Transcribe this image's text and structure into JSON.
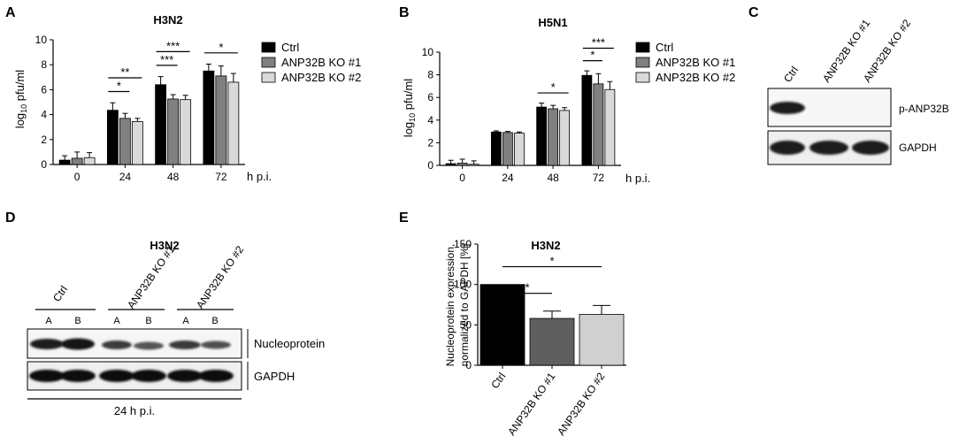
{
  "panels": {
    "A": "A",
    "B": "B",
    "C": "C",
    "D": "D",
    "E": "E"
  },
  "colors": {
    "ctrl": "#000000",
    "ko1": "#808080",
    "ko2": "#d9d9d9",
    "bar_e_ko1": "#5f5f5f",
    "bar_e_ko2": "#d0d0d0"
  },
  "blot_c": {
    "lanes": [
      "Ctrl",
      "ANP32B KO #1",
      "ANP32B KO #2"
    ],
    "rows": [
      "p-ANP32B",
      "GAPDH"
    ]
  },
  "blot_d": {
    "title": "H3N2",
    "groups": [
      "Ctrl",
      "ANP32B KO #1",
      "ANP32B KO #2"
    ],
    "sublanes": [
      "A",
      "B",
      "A",
      "B",
      "A",
      "B"
    ],
    "rows": [
      "Nucleoprotein",
      "GAPDH"
    ],
    "footer": "24 h p.i."
  },
  "chart_data": [
    {
      "panel": "A",
      "type": "bar",
      "title": "H3N2",
      "ylabel_main": "log",
      "ylabel_sub": "10",
      "ylabel_rest": " pfu/ml",
      "xlabel": "h p.i.",
      "categories": [
        "0",
        "24",
        "48",
        "72"
      ],
      "ylim": [
        0,
        10
      ],
      "yticks": [
        0,
        2,
        4,
        6,
        8,
        10
      ],
      "legend": "right",
      "series": [
        {
          "name": "Ctrl",
          "values": [
            0.35,
            4.35,
            6.4,
            7.5
          ],
          "errors": [
            0.35,
            0.6,
            0.65,
            0.55
          ]
        },
        {
          "name": "ANP32B KO #1",
          "values": [
            0.5,
            3.7,
            5.25,
            7.1
          ],
          "errors": [
            0.5,
            0.4,
            0.35,
            0.8
          ]
        },
        {
          "name": "ANP32B KO #2",
          "values": [
            0.55,
            3.45,
            5.2,
            6.6
          ],
          "errors": [
            0.4,
            0.25,
            0.35,
            0.7
          ]
        }
      ],
      "significance": [
        {
          "category": "24",
          "from": 0,
          "to": 1,
          "label": "*"
        },
        {
          "category": "24",
          "from": 0,
          "to": 2,
          "label": "**"
        },
        {
          "category": "48",
          "from": 0,
          "to": 1,
          "label": "***"
        },
        {
          "category": "48",
          "from": 0,
          "to": 2,
          "label": "***"
        },
        {
          "category": "72",
          "from": 0,
          "to": 2,
          "label": "*"
        }
      ]
    },
    {
      "panel": "B",
      "type": "bar",
      "title": "H5N1",
      "ylabel_main": "log",
      "ylabel_sub": "10",
      "ylabel_rest": " pfu/ml",
      "xlabel": "h p.i.",
      "categories": [
        "0",
        "24",
        "48",
        "72"
      ],
      "ylim": [
        0,
        10
      ],
      "yticks": [
        0,
        2,
        4,
        6,
        8,
        10
      ],
      "legend": "right",
      "series": [
        {
          "name": "Ctrl",
          "values": [
            0.15,
            2.95,
            5.15,
            7.95
          ],
          "errors": [
            0.3,
            0.1,
            0.35,
            0.4
          ]
        },
        {
          "name": "ANP32B KO #1",
          "values": [
            0.2,
            2.9,
            5.0,
            7.2
          ],
          "errors": [
            0.35,
            0.1,
            0.3,
            0.9
          ]
        },
        {
          "name": "ANP32B KO #2",
          "values": [
            0.1,
            2.85,
            4.85,
            6.7
          ],
          "errors": [
            0.3,
            0.1,
            0.25,
            0.7
          ]
        }
      ],
      "significance": [
        {
          "category": "48",
          "from": 0,
          "to": 2,
          "label": "*"
        },
        {
          "category": "72",
          "from": 0,
          "to": 1,
          "label": "*"
        },
        {
          "category": "72",
          "from": 0,
          "to": 2,
          "label": "***"
        }
      ]
    },
    {
      "panel": "E",
      "type": "bar",
      "title": "H3N2",
      "ylabel_lines": [
        "Nucleoprotein expression,",
        "normalized to GAPDH [%]"
      ],
      "categories": [
        "Ctrl",
        "ANP32B KO #1",
        "ANP32B KO #2"
      ],
      "values": [
        100,
        58,
        63
      ],
      "errors": [
        0,
        9,
        11
      ],
      "ylim": [
        0,
        150
      ],
      "yticks": [
        0,
        50,
        100,
        150
      ],
      "significance": [
        {
          "from": 0,
          "to": 1,
          "label": "*"
        },
        {
          "from": 0,
          "to": 2,
          "label": "*"
        }
      ]
    }
  ]
}
